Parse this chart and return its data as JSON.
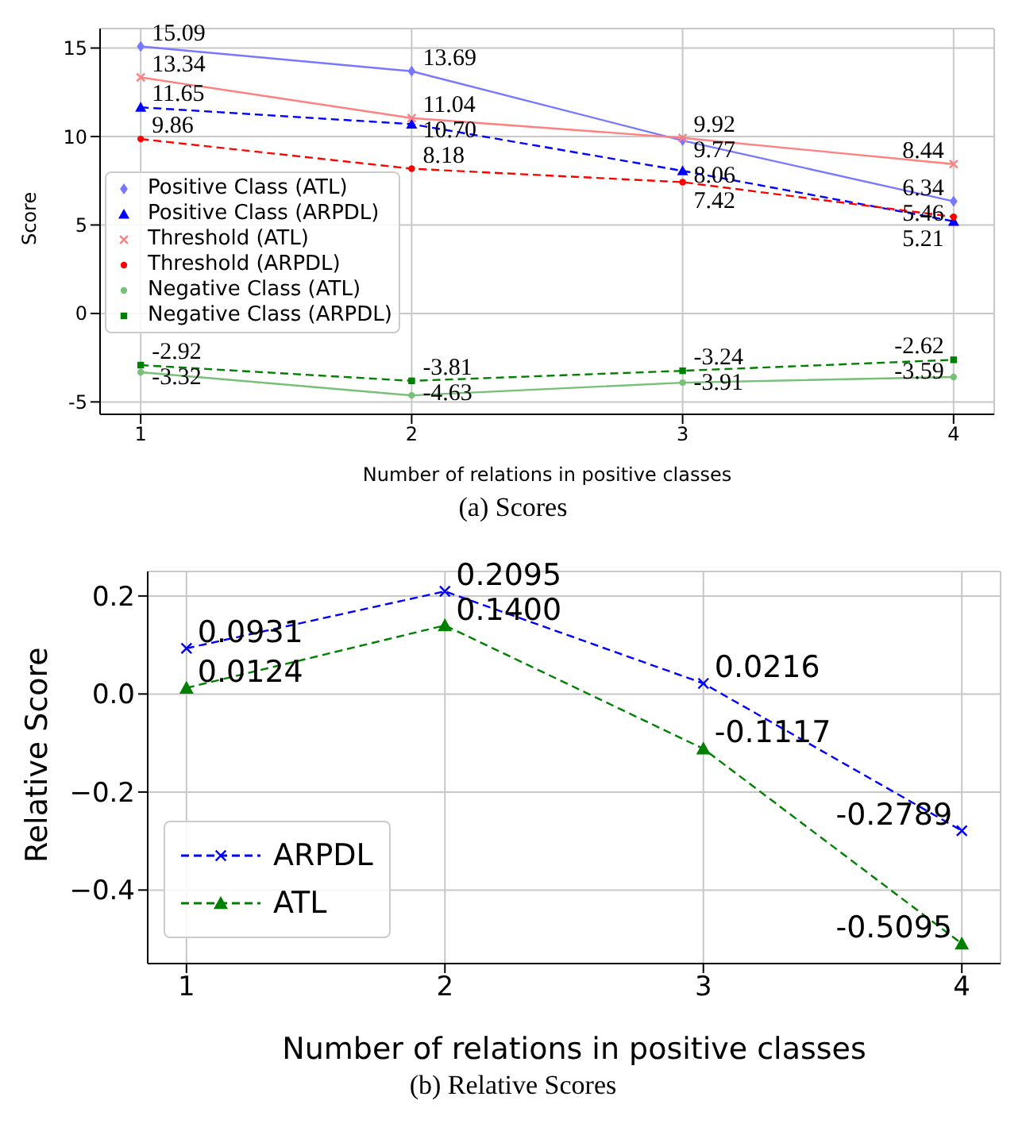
{
  "chart_data": [
    {
      "type": "line",
      "title": "(a) Scores",
      "xlabel": "Number of relations in positive classes",
      "ylabel": "Score",
      "x": [
        1,
        2,
        3,
        4
      ],
      "xlim": [
        0.85,
        4.15
      ],
      "xticks": [
        1,
        2,
        3,
        4
      ],
      "ylim": [
        -5.7,
        16.1
      ],
      "yticks": [
        -5,
        0,
        5,
        10,
        15
      ],
      "grid": true,
      "legend": "left",
      "series": [
        {
          "name": "Positive Class (ATL)",
          "color": "#7777ff",
          "marker": "diamond",
          "line_style": "solid",
          "values": [
            15.09,
            13.69,
            9.77,
            6.34
          ],
          "value_labels": [
            "15.09",
            "13.69",
            "9.77",
            "6.34"
          ]
        },
        {
          "name": "Positive Class (ARPDL)",
          "color": "#0000ff",
          "marker": "triangle",
          "line_style": "dashed",
          "values": [
            11.65,
            10.7,
            8.06,
            5.21
          ],
          "value_labels": [
            "11.65",
            "10.70",
            "8.06",
            "5.21"
          ]
        },
        {
          "name": "Threshold (ATL)",
          "color": "#ff8080",
          "marker": "cross",
          "line_style": "solid",
          "values": [
            13.34,
            11.04,
            9.92,
            8.44
          ],
          "value_labels": [
            "13.34",
            "11.04",
            "9.92",
            "8.44"
          ]
        },
        {
          "name": "Threshold (ARPDL)",
          "color": "#ff0000",
          "marker": "circle",
          "line_style": "dashed",
          "values": [
            9.86,
            8.18,
            7.42,
            5.46
          ],
          "value_labels": [
            "9.86",
            "8.18",
            "7.42",
            "5.46"
          ]
        },
        {
          "name": "Negative Class (ATL)",
          "color": "#77c077",
          "marker": "circle",
          "line_style": "solid",
          "values": [
            -3.32,
            -4.63,
            -3.91,
            -3.59
          ],
          "value_labels": [
            "-3.32",
            "-4.63",
            "-3.91",
            "-3.59"
          ]
        },
        {
          "name": "Negative Class (ARPDL)",
          "color": "#008000",
          "marker": "square",
          "line_style": "dashed",
          "values": [
            -2.92,
            -3.81,
            -3.24,
            -2.62
          ],
          "value_labels": [
            "-2.92",
            "-3.81",
            "-3.24",
            "-2.62"
          ]
        }
      ]
    },
    {
      "type": "line",
      "title": "(b) Relative Scores",
      "xlabel": "Number of relations in positive classes",
      "ylabel": "Relative Score",
      "x": [
        1,
        2,
        3,
        4
      ],
      "xlim": [
        0.85,
        4.15
      ],
      "xticks": [
        1,
        2,
        3,
        4
      ],
      "ylim": [
        -0.55,
        0.25
      ],
      "yticks": [
        {
          "value": -0.4,
          "label": "−0.4"
        },
        {
          "value": -0.2,
          "label": "−0.2"
        },
        {
          "value": 0,
          "label": "0.0"
        },
        {
          "value": 0.2,
          "label": "0.2"
        }
      ],
      "grid": true,
      "legend": "bottom left",
      "series": [
        {
          "name": "ARPDL",
          "color": "#0000ff",
          "marker": "cross",
          "line_style": "dashed",
          "values": [
            0.0931,
            0.2095,
            0.0216,
            -0.2789
          ],
          "value_labels": [
            "0.0931",
            "0.2095",
            "0.0216",
            "-0.2789"
          ]
        },
        {
          "name": "ATL",
          "color": "#008000",
          "marker": "triangle",
          "line_style": "dashed",
          "values": [
            0.0124,
            0.14,
            -0.1117,
            -0.5095
          ],
          "value_labels": [
            "0.0124",
            "0.1400",
            "-0.1117",
            "-0.5095"
          ]
        }
      ]
    }
  ]
}
